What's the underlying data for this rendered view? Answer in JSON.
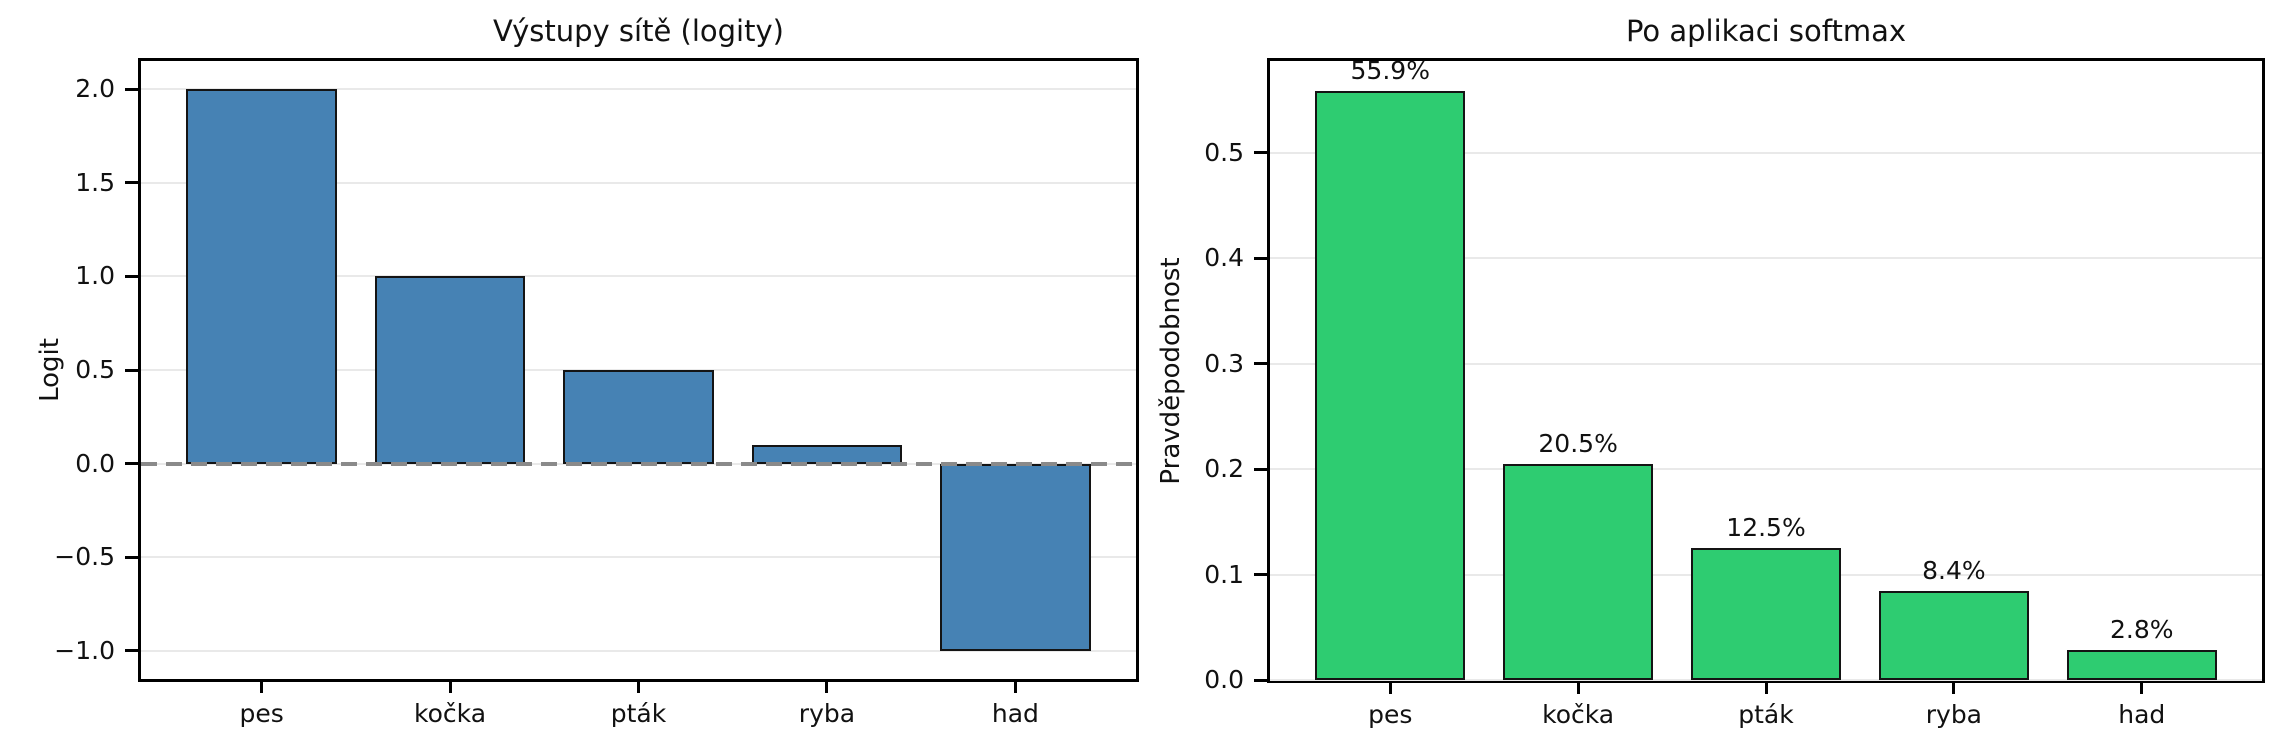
{
  "figure": {
    "background": "#ffffff",
    "text_color": "#111111",
    "grid_color": "#e9e9e9",
    "spine_color": "#000000"
  },
  "chart_data": [
    {
      "type": "bar",
      "title": "Výstupy sítě (logity)",
      "xlabel": "",
      "ylabel": "Logit",
      "categories": [
        "pes",
        "kočka",
        "pták",
        "ryba",
        "had"
      ],
      "values": [
        2.0,
        1.0,
        0.5,
        0.1,
        -1.0
      ],
      "ylim": [
        -1.15,
        2.15
      ],
      "yticks": [
        -1.0,
        -0.5,
        0.0,
        0.5,
        1.0,
        1.5,
        2.0
      ],
      "ytick_labels": [
        "−1.0",
        "−0.5",
        "0.0",
        "0.5",
        "1.0",
        "1.5",
        "2.0"
      ],
      "grid": true,
      "legend": "none",
      "bar_color": "#4682b4",
      "bar_edge_color": "#141414",
      "zero_line": {
        "show": true,
        "style": "dashed",
        "color": "#8a8a8a",
        "y": 0
      }
    },
    {
      "type": "bar",
      "title": "Po aplikaci softmax",
      "xlabel": "",
      "ylabel": "Pravděpodobnost",
      "categories": [
        "pes",
        "kočka",
        "pták",
        "ryba",
        "had"
      ],
      "values": [
        0.559,
        0.205,
        0.125,
        0.084,
        0.028
      ],
      "bar_labels": [
        "55.9%",
        "20.5%",
        "12.5%",
        "8.4%",
        "2.8%"
      ],
      "ylim": [
        0,
        0.587
      ],
      "yticks": [
        0.0,
        0.1,
        0.2,
        0.3,
        0.4,
        0.5
      ],
      "ytick_labels": [
        "0.0",
        "0.1",
        "0.2",
        "0.3",
        "0.4",
        "0.5"
      ],
      "grid": true,
      "legend": "none",
      "bar_color": "#2ecc71",
      "bar_edge_color": "#141414",
      "zero_line": {
        "show": false
      }
    }
  ]
}
